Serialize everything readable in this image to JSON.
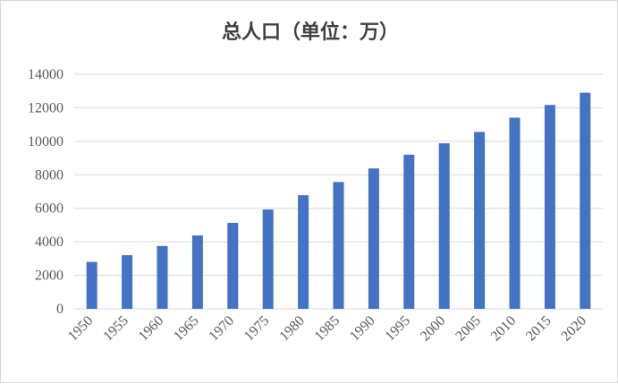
{
  "chart_data": {
    "type": "bar",
    "title": "总人口（单位：万）",
    "xlabel": "",
    "ylabel": "",
    "categories": [
      "1950",
      "1955",
      "1960",
      "1965",
      "1970",
      "1975",
      "1980",
      "1985",
      "1990",
      "1995",
      "2000",
      "2005",
      "2010",
      "2015",
      "2020"
    ],
    "values": [
      2800,
      3200,
      3750,
      4380,
      5130,
      5930,
      6780,
      7570,
      8380,
      9200,
      9880,
      10560,
      11410,
      12170,
      12900
    ],
    "ylim": [
      0,
      14000
    ],
    "yticks": [
      0,
      2000,
      4000,
      6000,
      8000,
      10000,
      12000,
      14000
    ],
    "grid": true,
    "legend": "none",
    "colors": {
      "bar": "#4472C4",
      "grid": "#d9d9d9",
      "text": "#595959",
      "title": "#404040"
    }
  }
}
